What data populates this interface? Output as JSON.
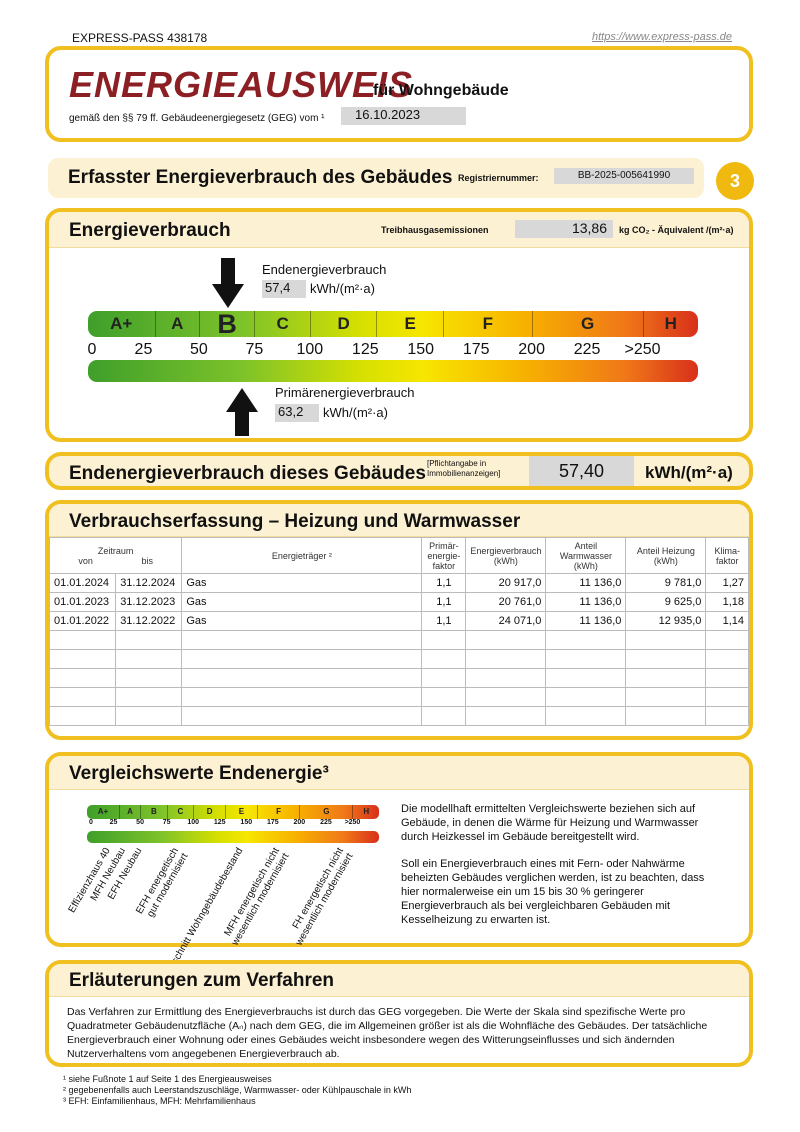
{
  "top": {
    "pass": "EXPRESS-PASS 438178",
    "url": "https://www.express-pass.de"
  },
  "title": {
    "main": "ENERGIEAUSWEIS",
    "sub": "für Wohngebäude",
    "law": "gemäß den §§ 79 ff. Gebäudeenergiegesetz (GEG) vom ¹",
    "date": "16.10.2023"
  },
  "section": {
    "title": "Erfasster Energieverbrauch des Gebäudes",
    "reg_label": "Registriernummer:",
    "reg": "BB-2025-005641990",
    "page": "3"
  },
  "energy": {
    "title": "Energieverbrauch",
    "ghg_label": "Treibhausgasemissionen",
    "ghg": "13,86",
    "ghg_unit": "kg CO₂ - Äquivalent  /(m²·a)",
    "end_label": "Endenergieverbrauch",
    "end_value": "57,4",
    "unit": "kWh/(m²·a)",
    "prim_label": "Primärenergieverbrauch",
    "prim_value": "63,2",
    "end_numeric": 57.4,
    "prim_numeric": 63.2,
    "classes": [
      "A+",
      "A",
      "B",
      "C",
      "D",
      "E",
      "F",
      "G",
      "H"
    ],
    "ticks": [
      "0",
      "25",
      "50",
      "75",
      "100",
      "125",
      "150",
      "175",
      "200",
      "225",
      ">250"
    ]
  },
  "building": {
    "title": "Endenergieverbrauch dieses Gebäudes",
    "note": "[Pflichtangabe in Immobilienanzeigen]",
    "value": "57,40",
    "unit": "kWh/(m²·a)"
  },
  "table": {
    "title": "Verbrauchserfassung – Heizung und Warmwasser",
    "headers": {
      "period": "Zeitraum",
      "from": "von",
      "to": "bis",
      "carrier": "Energieträger ²",
      "pef": "Primär-energie-faktor",
      "consumption": "Energieverbrauch (kWh)",
      "ww": "Anteil Warmwasser (kWh)",
      "heat": "Anteil Heizung (kWh)",
      "klima": "Klima-faktor"
    },
    "rows": [
      [
        "01.01.2024",
        "31.12.2024",
        "Gas",
        "1,1",
        "20 917,0",
        "11 136,0",
        "9 781,0",
        "1,27"
      ],
      [
        "01.01.2023",
        "31.12.2023",
        "Gas",
        "1,1",
        "20 761,0",
        "11 136,0",
        "9 625,0",
        "1,18"
      ],
      [
        "01.01.2022",
        "31.12.2022",
        "Gas",
        "1,1",
        "24 071,0",
        "11 136,0",
        "12 935,0",
        "1,14"
      ]
    ]
  },
  "compare": {
    "title": "Vergleichswerte Endenergie³",
    "labels": [
      "Effizienzhaus 40",
      "MFH Neubau",
      "EFH Neubau",
      "EFH energetisch gut modernisiert",
      "Durchschnitt Wohngebäudebestand",
      "MFH energetisch nicht wesentlich modernisiert",
      "FH energetisch nicht wesentlich modernisiert"
    ],
    "text1": "Die modellhaft ermittelten Vergleichswerte beziehen sich auf Gebäude, in denen die Wärme für Heizung und Warmwasser durch Heizkessel im Gebäude bereitgestellt wird.",
    "text2": "Soll ein Energieverbrauch eines mit Fern- oder Nahwärme beheizten Gebäudes verglichen werden, ist zu beachten, dass hier normalerweise ein um 15 bis 30 % geringerer Energieverbrauch als bei vergleichbaren Gebäuden mit Kesselheizung zu erwarten ist."
  },
  "explain": {
    "title": "Erläuterungen zum Verfahren",
    "text": "Das Verfahren zur Ermittlung des Energieverbrauchs ist durch das GEG vorgegeben. Die Werte der Skala sind spezifische Werte pro Quadratmeter Gebäudenutzfläche (Aₙ) nach dem GEG, die im Allgemeinen größer ist als die Wohnfläche des Gebäudes. Der tatsächliche Energieverbrauch einer Wohnung oder eines Gebäudes weicht insbesondere wegen des Witterungseinflusses und sich ändernden Nutzerverhaltens vom angegebenen Energieverbrauch ab."
  },
  "footnotes": [
    "¹ siehe Fußnote 1 auf Seite 1 des Energieausweises",
    "² gegebenenfalls auch Leerstandszuschläge, Warmwasser- oder Kühlpauschale in kWh",
    "³ EFH: Einfamilienhaus, MFH: Mehrfamilienhaus"
  ]
}
